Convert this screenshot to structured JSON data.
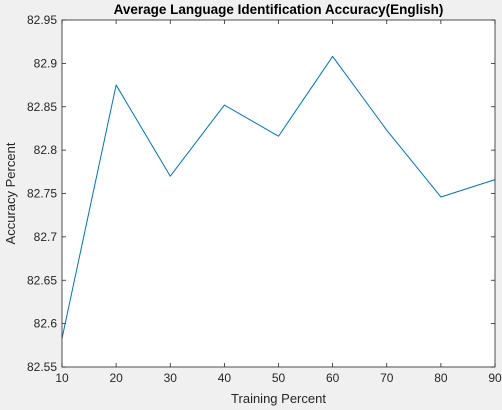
{
  "chart_data": {
    "type": "line",
    "title": "Average Language Identification Accuracy(English)",
    "xlabel": "Training Percent",
    "ylabel": "Accuracy Percent",
    "x": [
      10,
      20,
      30,
      40,
      50,
      60,
      70,
      80,
      90
    ],
    "series": [
      {
        "values": [
          82.583,
          82.875,
          82.77,
          82.852,
          82.816,
          82.908,
          82.823,
          82.746,
          82.766
        ]
      }
    ],
    "xlim": [
      10,
      90
    ],
    "ylim": [
      82.55,
      82.95
    ],
    "xticks": [
      "10",
      "20",
      "30",
      "40",
      "50",
      "60",
      "70",
      "80",
      "90"
    ],
    "yticks": [
      "82.55",
      "82.6",
      "82.65",
      "82.7",
      "82.75",
      "82.8",
      "82.85",
      "82.9",
      "82.95"
    ],
    "grid": false,
    "line_color": "#0072bd",
    "axes_color": "#262626",
    "plot_background": "#ffffff",
    "figure_background": "#f0f0f0"
  }
}
